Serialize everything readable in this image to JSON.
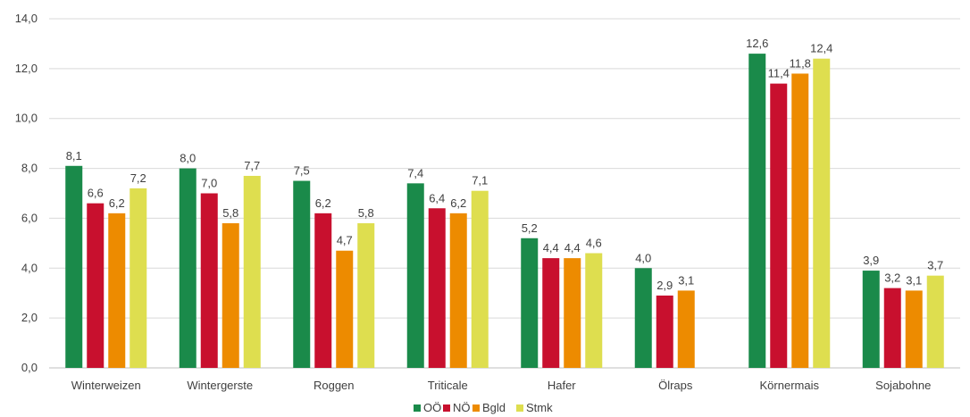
{
  "chart_data": {
    "type": "bar",
    "categories": [
      "Winterweizen",
      "Wintergerste",
      "Roggen",
      "Triticale",
      "Hafer",
      "Ölraps",
      "Körnermais",
      "Sojabohne"
    ],
    "series": [
      {
        "name": "OÖ",
        "color": "#1a8a4a",
        "values": [
          8.1,
          8.0,
          7.5,
          7.4,
          5.2,
          4.0,
          12.6,
          3.9
        ],
        "labels": [
          "8,1",
          "8,0",
          "7,5",
          "7,4",
          "5,2",
          "4,0",
          "12,6",
          "3,9"
        ]
      },
      {
        "name": "NÖ",
        "color": "#c8102e",
        "values": [
          6.6,
          7.0,
          6.2,
          6.4,
          4.4,
          2.9,
          11.4,
          3.2
        ],
        "labels": [
          "6,6",
          "7,0",
          "6,2",
          "6,4",
          "4,4",
          "2,9",
          "11,4",
          "3,2"
        ]
      },
      {
        "name": "Bgld",
        "color": "#ed8b00",
        "values": [
          6.2,
          5.8,
          4.7,
          6.2,
          4.4,
          3.1,
          11.8,
          3.1
        ],
        "labels": [
          "6,2",
          "5,8",
          "4,7",
          "6,2",
          "4,4",
          "3,1",
          "11,8",
          "3,1"
        ]
      },
      {
        "name": "Stmk",
        "color": "#dede4f",
        "values": [
          7.2,
          7.7,
          5.8,
          7.1,
          4.6,
          null,
          12.4,
          3.7
        ],
        "labels": [
          "7,2",
          "7,7",
          "5,8",
          "7,1",
          "4,6",
          "",
          "12,4",
          "3,7"
        ]
      }
    ],
    "ylim": [
      0,
      14
    ],
    "yticks": [
      0,
      2,
      4,
      6,
      8,
      10,
      12,
      14
    ],
    "ytick_labels": [
      "0,0",
      "2,0",
      "4,0",
      "6,0",
      "8,0",
      "10,0",
      "12,0",
      "14,0"
    ],
    "grid": true,
    "legend_position": "bottom-center"
  }
}
